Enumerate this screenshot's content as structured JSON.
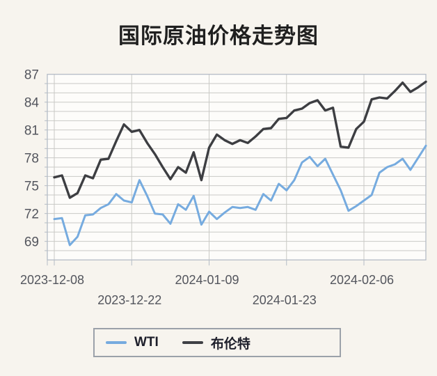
{
  "title": "国际原油价格走势图",
  "colors": {
    "wti": "#76abdf",
    "brent": "#3d3e42",
    "grid": "#c9c9c5",
    "frame": "#b4bcc6",
    "axis_text": "#53555d",
    "page_bg": "#f7f4ee",
    "plot_bg": "#fdfcfa"
  },
  "legend": {
    "items": [
      {
        "label": "WTI",
        "color": "#76abdf"
      },
      {
        "label": "布伦特",
        "color": "#3f4045"
      }
    ]
  },
  "chart_data": {
    "type": "line",
    "title": "国际原油价格走势图",
    "xlabel": "",
    "ylabel": "",
    "ylim": [
      67,
      87
    ],
    "grid": true,
    "legend_position": "bottom",
    "y_ticks": [
      87,
      84,
      81,
      78,
      75,
      72,
      69
    ],
    "x_tick_labels": [
      "2023-12-08",
      "2023-12-22",
      "2024-01-09",
      "2024-01-23",
      "2024-02-06"
    ],
    "x_tick_indices": [
      0,
      10,
      20,
      30,
      40
    ],
    "series": [
      {
        "name": "WTI",
        "color": "#76abdf",
        "width": 3,
        "values": [
          71.4,
          71.5,
          68.6,
          69.5,
          71.8,
          71.9,
          72.6,
          73.0,
          74.1,
          73.4,
          73.2,
          75.6,
          73.9,
          72.0,
          71.9,
          70.9,
          73.0,
          72.4,
          73.9,
          70.8,
          72.2,
          71.4,
          72.1,
          72.7,
          72.6,
          72.7,
          72.4,
          74.1,
          73.4,
          75.2,
          74.5,
          75.6,
          77.5,
          78.1,
          77.1,
          77.9,
          76.2,
          74.5,
          72.3,
          72.8,
          73.4,
          74.0,
          76.4,
          77.0,
          77.3,
          77.9,
          76.7,
          78.0,
          79.3
        ]
      },
      {
        "name": "布伦特",
        "color": "#3d3e42",
        "width": 3.4,
        "values": [
          75.9,
          76.1,
          73.7,
          74.2,
          76.1,
          75.8,
          77.8,
          77.9,
          79.8,
          81.6,
          80.8,
          81.0,
          79.6,
          78.4,
          77.0,
          75.7,
          77.0,
          76.4,
          78.6,
          75.6,
          79.1,
          80.5,
          79.9,
          79.5,
          79.9,
          79.6,
          80.3,
          81.1,
          81.2,
          82.2,
          82.3,
          83.1,
          83.3,
          83.9,
          84.2,
          83.1,
          83.4,
          79.2,
          79.1,
          81.1,
          81.9,
          84.3,
          84.5,
          84.4,
          85.2,
          86.1,
          85.1,
          85.6,
          86.2
        ]
      }
    ]
  }
}
